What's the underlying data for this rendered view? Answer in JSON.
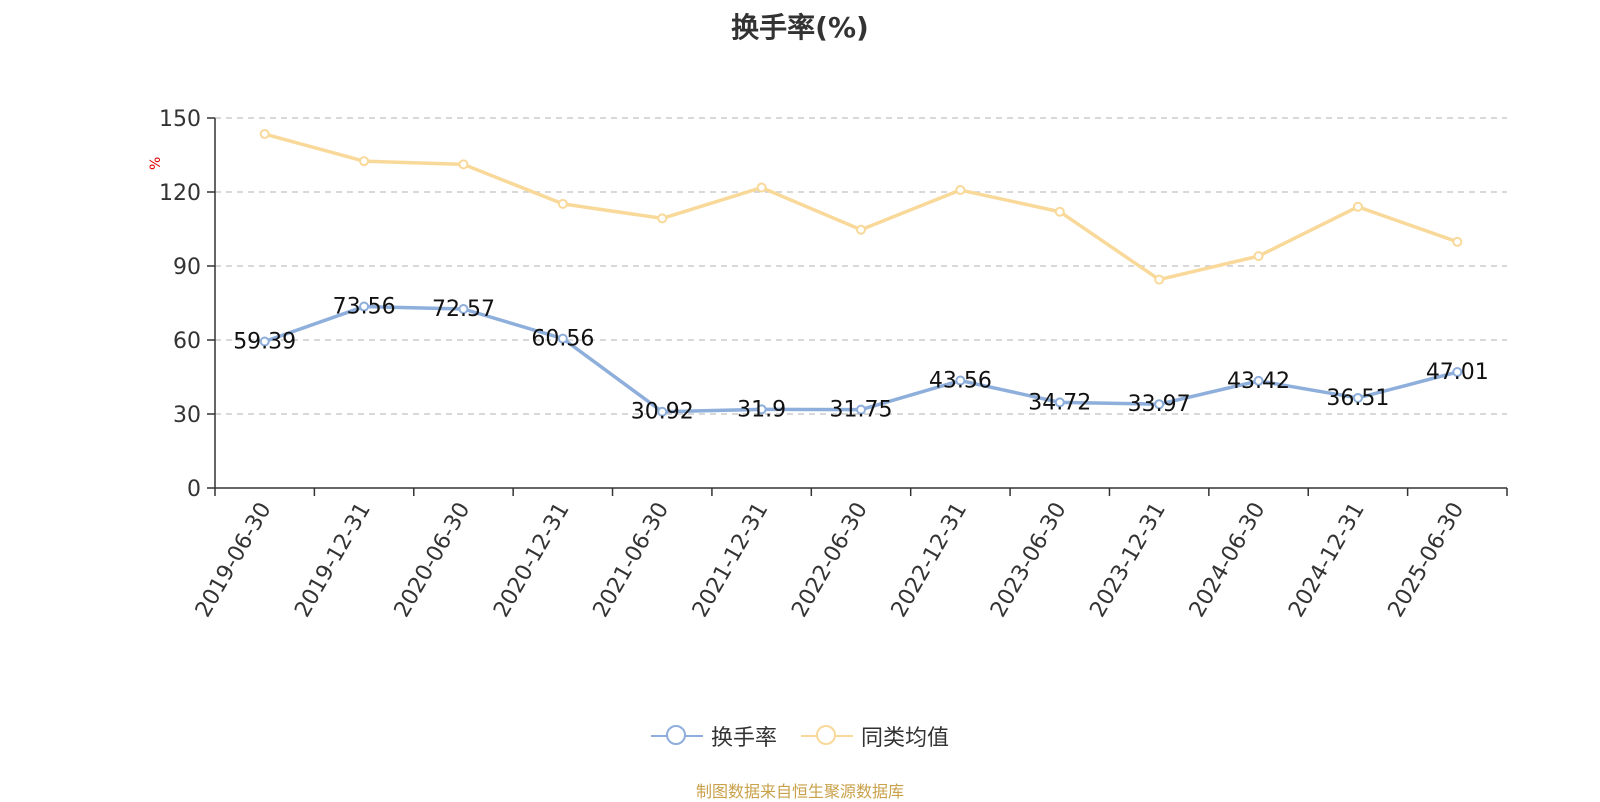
{
  "chart_data": {
    "type": "line",
    "title": "换手率(%)",
    "ylabel": "%",
    "ylim": [
      0,
      150
    ],
    "yticks": [
      0,
      30,
      60,
      90,
      120,
      150
    ],
    "grid": true,
    "legend_placement": "bottom",
    "categories": [
      "2019-06-30",
      "2019-12-31",
      "2020-06-30",
      "2020-12-31",
      "2021-06-30",
      "2021-12-31",
      "2022-06-30",
      "2022-12-31",
      "2023-06-30",
      "2023-12-31",
      "2024-06-30",
      "2024-12-31",
      "2025-06-30"
    ],
    "series": [
      {
        "name": "换手率",
        "color": "#8eaedb",
        "values": [
          59.39,
          73.56,
          72.57,
          60.56,
          30.92,
          31.9,
          31.75,
          43.56,
          34.72,
          33.97,
          43.42,
          36.51,
          47.01
        ],
        "labels": [
          "59.39",
          "73.56",
          "72.57",
          "60.56",
          "30.92",
          "31.9",
          "31.75",
          "43.56",
          "34.72",
          "33.97",
          "43.42",
          "36.51",
          "47.01"
        ],
        "show_labels": true
      },
      {
        "name": "同类均值",
        "color": "#f9d99a",
        "values": [
          143.5,
          132.5,
          131.2,
          115.2,
          109.3,
          121.8,
          104.7,
          120.8,
          112.0,
          84.5,
          94.0,
          114.0,
          99.8
        ],
        "show_labels": false
      }
    ]
  },
  "footer": {
    "source": "制图数据来自恒生聚源数据库"
  }
}
